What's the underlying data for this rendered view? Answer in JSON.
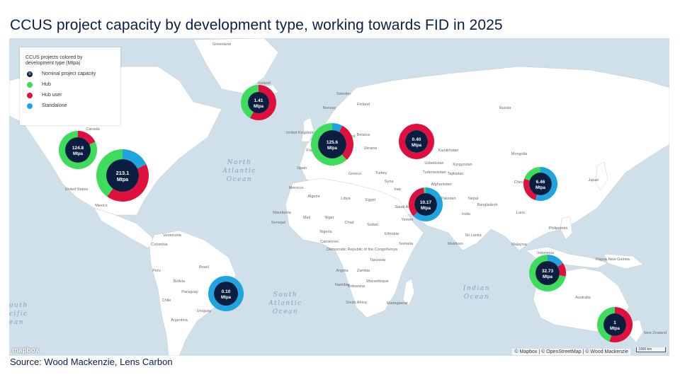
{
  "title": "CCUS project capacity by development type, working towards FID in 2025",
  "source": "Source: Wood Mackenzie, Lens Carbon",
  "attribution": "© Mapbox | © OpenStreetMap | © Wood Mackenzie",
  "scale": "1000 km",
  "logo": "mapbox",
  "colors": {
    "hub": "#3ddc5a",
    "hub_user": "#e0103e",
    "standalone": "#1ea5df",
    "center": "#0b1e3f",
    "water": "#cfe0ea",
    "land": "#ffffff"
  },
  "legend": {
    "title": "CCUS projects colored by development type (Mtpa)",
    "items": [
      {
        "key": "n",
        "label": "Nominal project capacity",
        "color": "#0b1e3f"
      },
      {
        "key": "",
        "label": "Hub",
        "color": "#3ddc5a"
      },
      {
        "key": "",
        "label": "Hub user",
        "color": "#e0103e"
      },
      {
        "key": "",
        "label": "Standalone",
        "color": "#1ea5df"
      }
    ]
  },
  "oceans": [
    {
      "name": "North Atlantic Ocean",
      "lines": [
        "North",
        "Atlantic",
        "Ocean"
      ]
    },
    {
      "name": "South Atlantic Ocean",
      "lines": [
        "South",
        "Atlantic",
        "Ocean"
      ]
    },
    {
      "name": "Indian Ocean",
      "lines": [
        "Indian",
        "Ocean"
      ]
    },
    {
      "name": "South Pacific Ocean",
      "lines": [
        "outh",
        "cific",
        "ean"
      ]
    }
  ],
  "countries": [
    "Greenland",
    "Canada",
    "United States",
    "Mexico",
    "Venezuela",
    "Colombia",
    "Peru",
    "Brazil",
    "Bolivia",
    "Paraguay",
    "Chile",
    "Argentina",
    "Uruguay",
    "Iceland",
    "Sweden",
    "Norway",
    "Finland",
    "United Kingdom",
    "Poland",
    "Belarus",
    "Ukraine",
    "France",
    "Spain",
    "Italy",
    "Greece",
    "Turkey",
    "Morocco",
    "Algeria",
    "Libya",
    "Egypt",
    "Mauritania",
    "Mali",
    "Niger",
    "Chad",
    "Sudan",
    "Senegal",
    "Nigeria",
    "Cameroon",
    "Ethiopia",
    "Somalia",
    "Kenya",
    "Tanzania",
    "Democratic Republic of the Congo",
    "Angola",
    "Zambia",
    "Namibia",
    "Botswana",
    "Mozambique",
    "Madagascar",
    "South Africa",
    "Saudi Arabia",
    "Yemen",
    "Oman",
    "Iraq",
    "Iran",
    "Syria",
    "Afghanistan",
    "Pakistan",
    "India",
    "Nepal",
    "Bangladesh",
    "Sri Lanka",
    "Maldives",
    "Russia",
    "Kazakhstan",
    "Mongolia",
    "China",
    "Japan",
    "Laos",
    "Philippines",
    "Malaysia",
    "Indonesia",
    "Papua New Guinea",
    "Australia",
    "New Zealand",
    "Turkmenistan",
    "Tajikistan",
    "Uzbekistan",
    "Kyrgyzstan"
  ],
  "projects": [
    {
      "label": "124.8",
      "unit": "Mtpa",
      "capacity": 124.8,
      "region": "Western Canada / US",
      "shares": {
        "hub": 0.82,
        "hub_user": 0.18,
        "standalone": 0
      }
    },
    {
      "label": "213.1",
      "unit": "Mtpa",
      "capacity": 213.1,
      "region": "United States",
      "shares": {
        "hub": 0.4,
        "hub_user": 0.42,
        "standalone": 0.18
      }
    },
    {
      "label": "1.41",
      "unit": "Mtpa",
      "capacity": 1.41,
      "region": "Iceland",
      "shares": {
        "hub": 0.42,
        "hub_user": 0.58,
        "standalone": 0
      }
    },
    {
      "label": "125.6",
      "unit": "Mtpa",
      "capacity": 125.6,
      "region": "Europe",
      "shares": {
        "hub": 0.62,
        "hub_user": 0.3,
        "standalone": 0.08
      }
    },
    {
      "label": "0.40",
      "unit": "Mtpa",
      "capacity": 0.4,
      "region": "Russia / Kazakhstan",
      "shares": {
        "hub": 0,
        "hub_user": 1.0,
        "standalone": 0
      }
    },
    {
      "label": "10.17",
      "unit": "Mtpa",
      "capacity": 10.17,
      "region": "Middle East",
      "shares": {
        "hub": 0.02,
        "hub_user": 0.35,
        "standalone": 0.63
      }
    },
    {
      "label": "6.46",
      "unit": "Mtpa",
      "capacity": 6.46,
      "region": "China",
      "shares": {
        "hub": 0.2,
        "hub_user": 0.25,
        "standalone": 0.55
      }
    },
    {
      "label": "32.73",
      "unit": "Mtpa",
      "capacity": 32.73,
      "region": "Malaysia / Indonesia",
      "shares": {
        "hub": 0.72,
        "hub_user": 0.12,
        "standalone": 0.16
      }
    },
    {
      "label": "0.10",
      "unit": "Mtpa",
      "capacity": 0.1,
      "region": "Brazil",
      "shares": {
        "hub": 0,
        "hub_user": 0,
        "standalone": 1.0
      }
    },
    {
      "label": "1",
      "unit": "Mtpa",
      "capacity": 1,
      "region": "New Zealand",
      "shares": {
        "hub": 0.45,
        "hub_user": 0.55,
        "standalone": 0
      }
    }
  ]
}
